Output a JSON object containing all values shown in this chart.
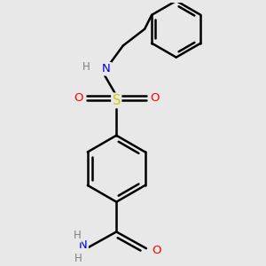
{
  "background_color": "#e8e8e8",
  "atom_colors": {
    "C": "#000000",
    "H": "#808080",
    "N": "#0000cd",
    "O": "#ff0000",
    "S": "#cccc00"
  },
  "bond_color": "#000000",
  "bond_width": 1.8,
  "figsize": [
    3.0,
    3.0
  ],
  "dpi": 100,
  "xlim": [
    -2.5,
    3.5
  ],
  "ylim": [
    -3.8,
    3.8
  ]
}
